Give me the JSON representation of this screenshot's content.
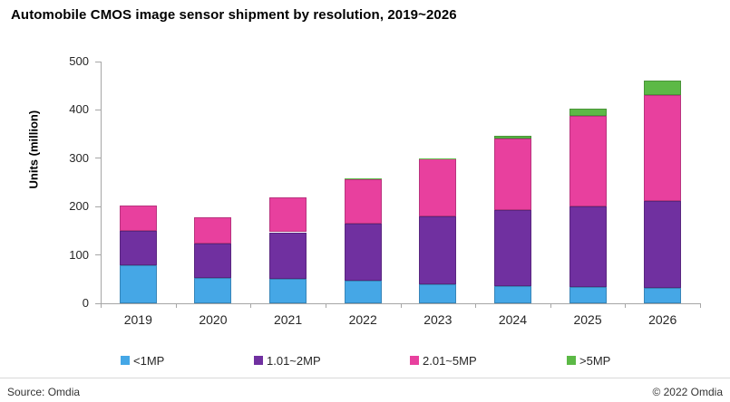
{
  "title": "Automobile CMOS image sensor shipment by resolution, 2019~2026",
  "footer": {
    "source": "Source: Omdia",
    "copyright": "© 2022 Omdia"
  },
  "colors": {
    "axis": "#a6a6a6",
    "series_lt1mp": "#45a7e6",
    "series_1to2mp": "#7030a0",
    "series_2to5mp": "#e8409e",
    "series_gt5mp": "#5cb946"
  },
  "chart_data": {
    "type": "bar",
    "stacked": true,
    "title": "Automobile CMOS image sensor shipment by resolution, 2019~2026",
    "categories": [
      "2019",
      "2020",
      "2021",
      "2022",
      "2023",
      "2024",
      "2025",
      "2026"
    ],
    "series": [
      {
        "name": "<1MP",
        "color": "#45a7e6",
        "values": [
          78,
          53,
          50,
          47,
          40,
          36,
          33,
          31
        ]
      },
      {
        "name": "1.01~2MP",
        "color": "#7030a0",
        "values": [
          72,
          71,
          97,
          118,
          140,
          156,
          167,
          181
        ]
      },
      {
        "name": "2.01~5MP",
        "color": "#e8409e",
        "values": [
          53,
          54,
          73,
          92,
          119,
          149,
          187,
          219
        ]
      },
      {
        "name": ">5MP",
        "color": "#5cb946",
        "values": [
          0,
          0,
          0,
          1,
          1,
          6,
          16,
          29
        ]
      }
    ],
    "totals": [
      203,
      178,
      220,
      258,
      300,
      347,
      403,
      460
    ],
    "xlabel": "",
    "ylabel": "Units (million)",
    "ylim": [
      0,
      500
    ],
    "yticks": [
      0,
      100,
      200,
      300,
      400,
      500
    ],
    "grid": false,
    "legend_position": "bottom"
  }
}
